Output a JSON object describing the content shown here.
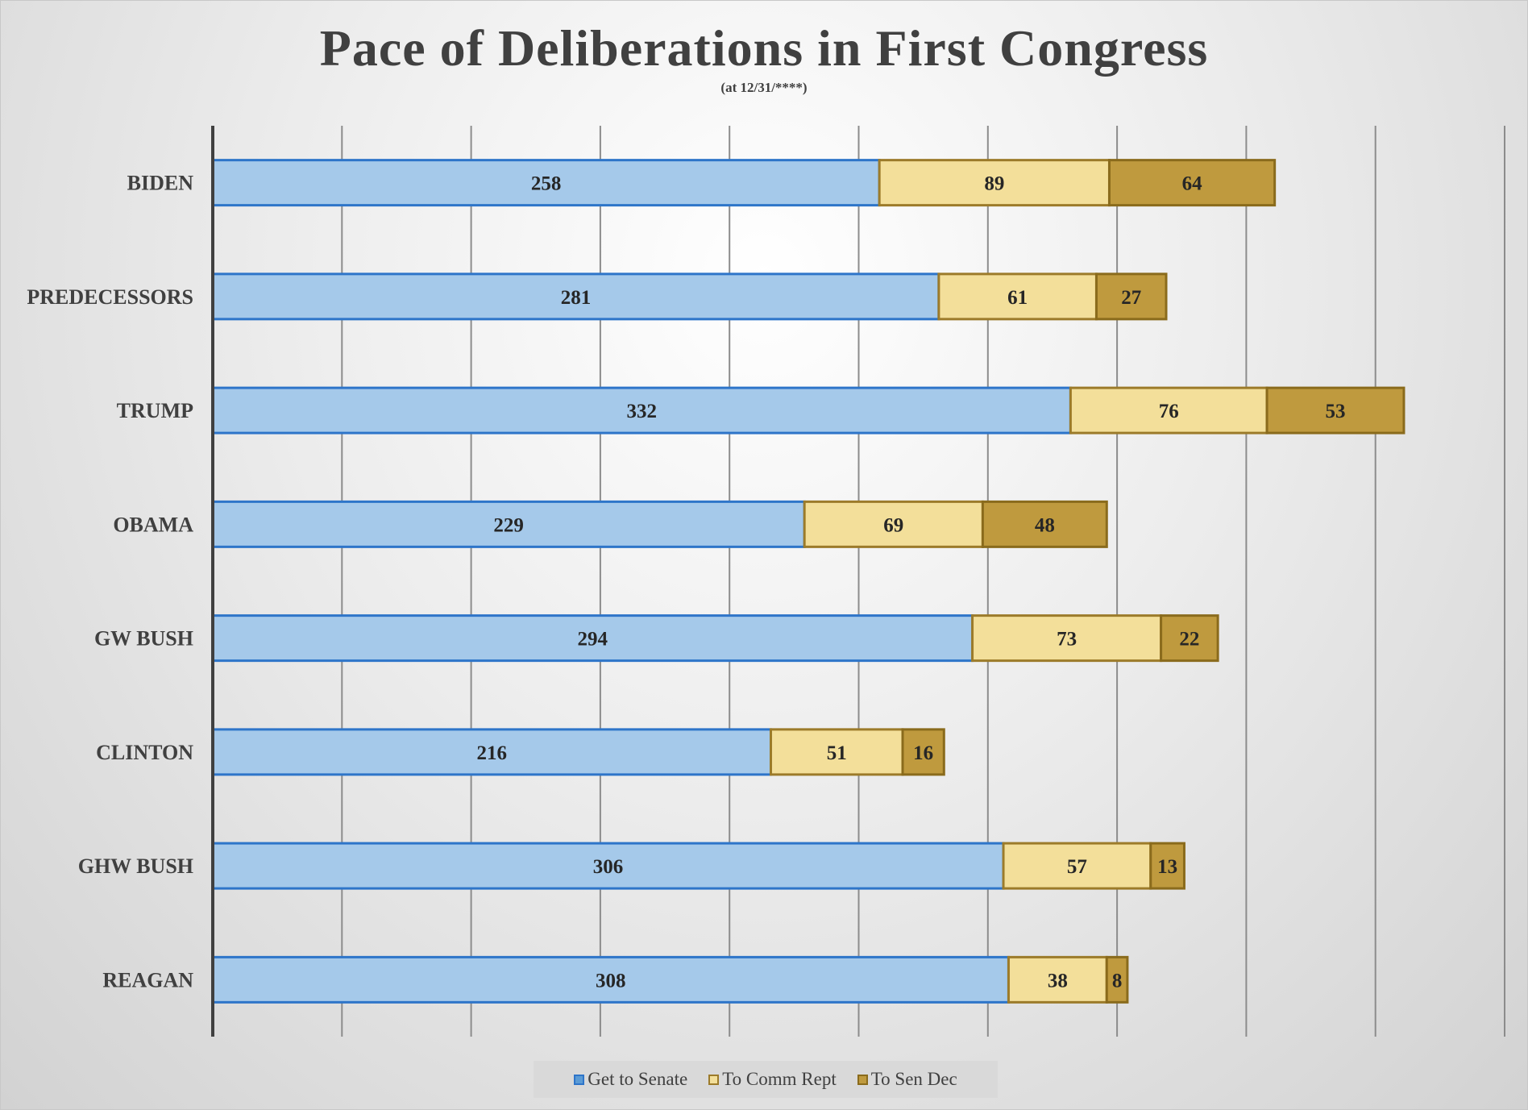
{
  "chart_data": {
    "type": "bar",
    "orientation": "horizontal",
    "stacked": true,
    "title": "Pace of Deliberations in First Congress",
    "subtitle": "(at 12/31/****)",
    "categories": [
      "BIDEN",
      "PREDECESSORS",
      "TRUMP",
      "OBAMA",
      "GW BUSH",
      "CLINTON",
      "GHW BUSH",
      "REAGAN"
    ],
    "series": [
      {
        "name": "Get to Senate",
        "values": [
          258,
          281,
          332,
          229,
          294,
          216,
          306,
          308
        ],
        "fill": "#a5c9ea",
        "stroke": "#2e75c9"
      },
      {
        "name": "To Comm Rept",
        "values": [
          89,
          61,
          76,
          69,
          73,
          51,
          57,
          38
        ],
        "fill": "#f3df9a",
        "stroke": "#9c7b2a"
      },
      {
        "name": "To Sen Dec",
        "values": [
          64,
          27,
          53,
          48,
          22,
          16,
          13,
          8
        ],
        "fill": "#bf9a3e",
        "stroke": "#8a6b1c"
      }
    ],
    "xlim": [
      0,
      500
    ],
    "x_tick_step": 50,
    "x_tick_labels_shown": false,
    "grid": true,
    "legend": "bottom"
  }
}
